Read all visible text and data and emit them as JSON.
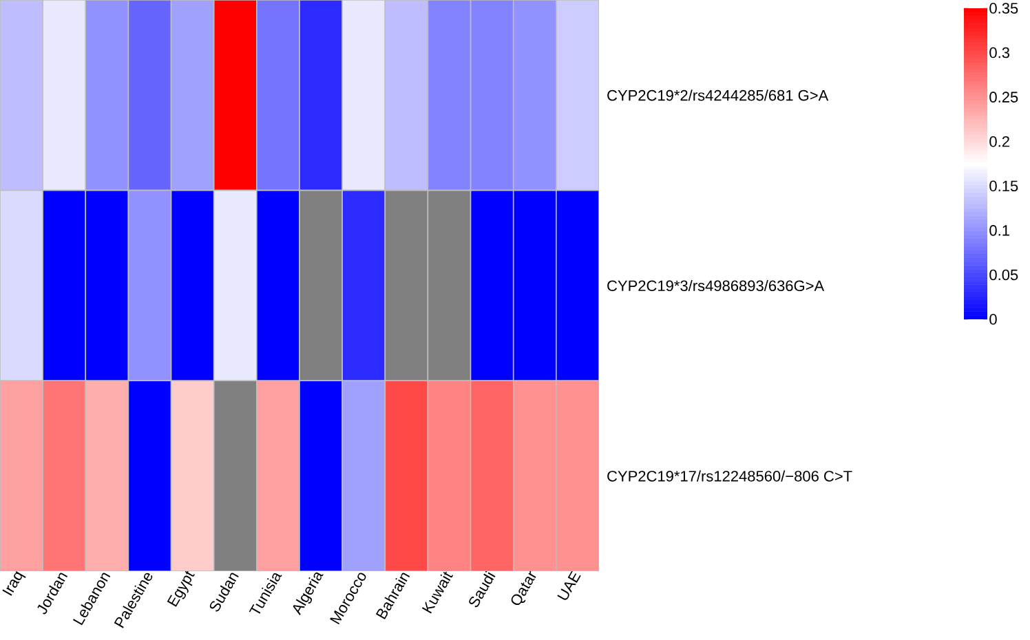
{
  "chart_data": {
    "type": "heatmap",
    "categories": [
      "Iraq",
      "Jordan",
      "Lebanon",
      "Palestine",
      "Egypt",
      "Sudan",
      "Tunisia",
      "Algeria",
      "Morocco",
      "Bahrain",
      "Kuwait",
      "Saudi",
      "Qatar",
      "UAE"
    ],
    "y_categories": [
      "CYP2C19*2/rs4244285/681 G>A",
      "CYP2C19*3/rs4986893/636G>A",
      "CYP2C19*17/rs12248560/−806 C>T"
    ],
    "cells": [
      [
        0.13,
        0.16,
        0.1,
        0.07,
        0.11,
        0.35,
        0.08,
        0.03,
        0.16,
        0.13,
        0.09,
        0.09,
        0.1,
        0.14
      ],
      [
        0.15,
        0,
        0,
        0.1,
        0,
        0.16,
        0,
        null,
        0.03,
        null,
        null,
        0,
        0,
        0
      ],
      [
        0.24,
        0.27,
        0.23,
        0,
        0.21,
        null,
        0.24,
        0,
        0.11,
        0.3,
        0.26,
        0.28,
        0.25,
        0.25
      ]
    ],
    "clim": [
      0,
      0.35
    ],
    "cticks": [
      0,
      0.05,
      0.1,
      0.15,
      0.2,
      0.25,
      0.3,
      0.35
    ]
  }
}
